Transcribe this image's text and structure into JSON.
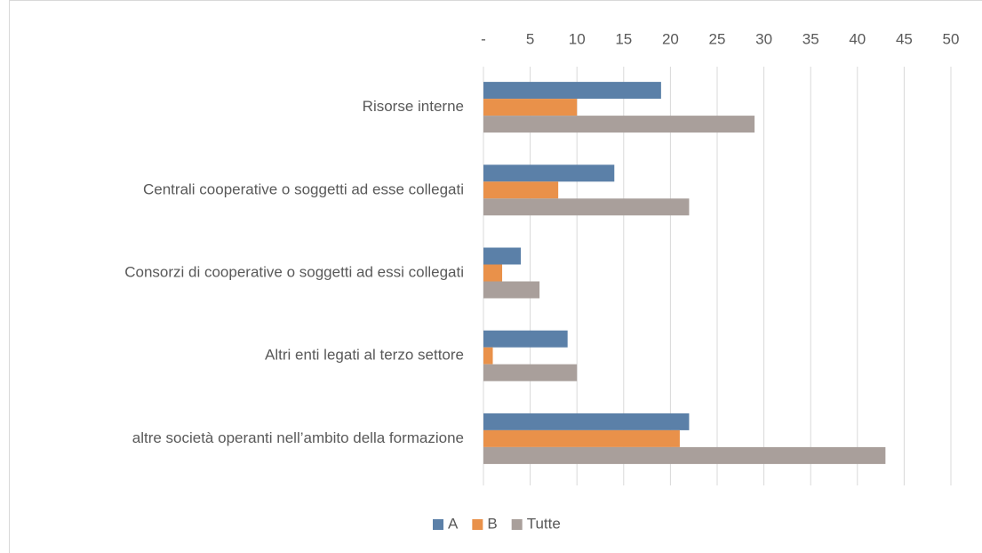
{
  "chart_data": {
    "type": "bar",
    "orientation": "horizontal",
    "categories": [
      "Risorse interne",
      "Centrali cooperative o soggetti ad esse collegati",
      "Consorzi di cooperative o soggetti ad essi collegati",
      "Altri enti legati al terzo settore",
      "altre società operanti nell’ambito della formazione"
    ],
    "series": [
      {
        "name": "A",
        "color": "#5b80a8",
        "values": [
          19,
          14,
          4,
          9,
          22
        ]
      },
      {
        "name": "B",
        "color": "#e9914a",
        "values": [
          10,
          8,
          2,
          1,
          21
        ]
      },
      {
        "name": "Tutte",
        "color": "#a99f9b",
        "values": [
          29,
          22,
          6,
          10,
          43
        ]
      }
    ],
    "xlim": [
      0,
      50
    ],
    "xticks": [
      {
        "value": 0,
        "label": "-"
      },
      5,
      10,
      15,
      20,
      25,
      30,
      35,
      40,
      45,
      50
    ],
    "grid": true,
    "legend": "bottom"
  }
}
